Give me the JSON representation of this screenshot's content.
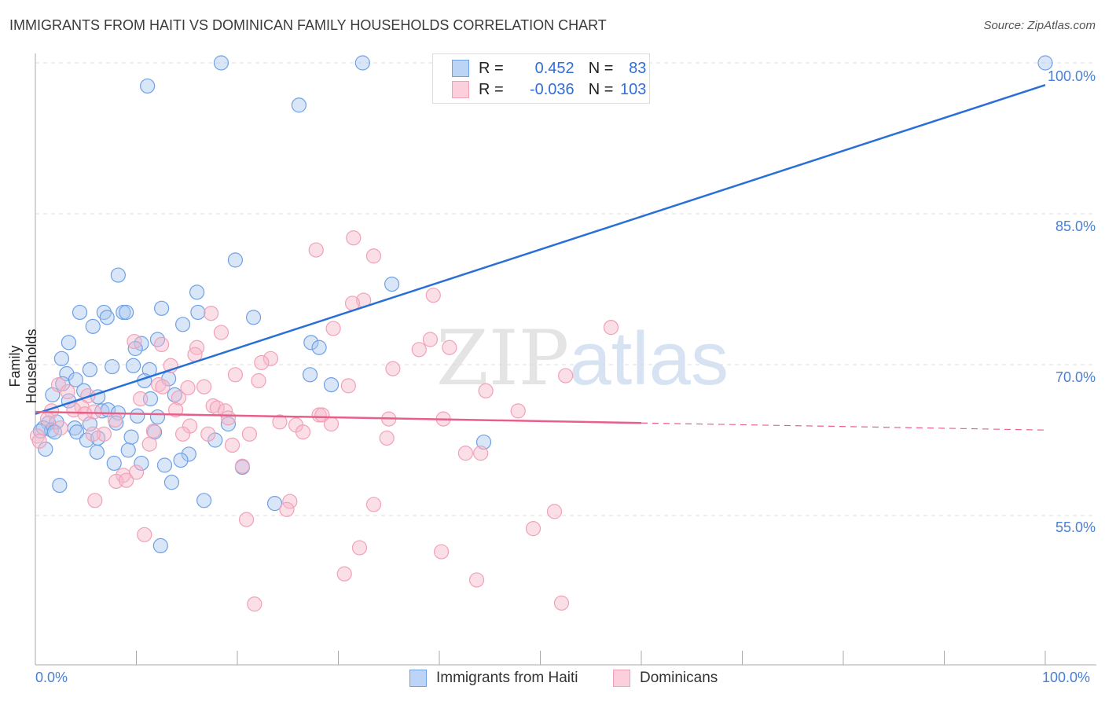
{
  "chart_data": {
    "type": "scatter",
    "title": "IMMIGRANTS FROM HAITI VS DOMINICAN FAMILY HOUSEHOLDS CORRELATION CHART",
    "source": "Source: ZipAtlas.com",
    "xlabel": "",
    "ylabel": "Family Households",
    "xlim": [
      0,
      100
    ],
    "ylim": [
      40,
      100
    ],
    "x_tick_labels": [
      "0.0%",
      "100.0%"
    ],
    "y_ticks": [
      55,
      70,
      85,
      100
    ],
    "y_tick_labels": [
      "55.0%",
      "70.0%",
      "85.0%",
      "100.0%"
    ],
    "grid": true,
    "legend_placement": "top-center",
    "watermark": {
      "zip": "ZIP",
      "atlas": "atlas"
    },
    "series": [
      {
        "name": "Immigrants from Haiti",
        "color": "#6fa0e6",
        "line_color": "#2a6fd6",
        "R_label": "R =",
        "R": "0.452",
        "N_label": "N =",
        "N": "83",
        "trend": [
          [
            0,
            65.1
          ],
          [
            100,
            97.8
          ]
        ],
        "points": [
          [
            18.4,
            100
          ],
          [
            32.4,
            100
          ],
          [
            100,
            100
          ],
          [
            11.1,
            97.7
          ],
          [
            26.1,
            95.8
          ],
          [
            19.8,
            80.4
          ],
          [
            8.2,
            78.9
          ],
          [
            35.3,
            78.0
          ],
          [
            16.0,
            77.2
          ],
          [
            4.4,
            75.2
          ],
          [
            6.8,
            75.2
          ],
          [
            8.7,
            75.2
          ],
          [
            9.0,
            75.2
          ],
          [
            12.5,
            75.6
          ],
          [
            16.1,
            75.2
          ],
          [
            7.1,
            74.7
          ],
          [
            21.6,
            74.7
          ],
          [
            5.7,
            73.8
          ],
          [
            14.6,
            74.0
          ],
          [
            3.3,
            72.2
          ],
          [
            12.1,
            72.5
          ],
          [
            10.5,
            72.1
          ],
          [
            9.9,
            71.6
          ],
          [
            27.3,
            72.2
          ],
          [
            28.1,
            71.7
          ],
          [
            2.6,
            70.6
          ],
          [
            7.6,
            69.8
          ],
          [
            5.4,
            69.5
          ],
          [
            9.7,
            69.9
          ],
          [
            11.3,
            69.5
          ],
          [
            3.1,
            69.1
          ],
          [
            27.2,
            69.0
          ],
          [
            29.3,
            68.0
          ],
          [
            4.0,
            68.5
          ],
          [
            10.8,
            68.4
          ],
          [
            13.2,
            68.6
          ],
          [
            2.7,
            68.1
          ],
          [
            4.8,
            67.4
          ],
          [
            1.7,
            67.0
          ],
          [
            6.2,
            66.8
          ],
          [
            13.8,
            67.0
          ],
          [
            3.3,
            66.4
          ],
          [
            11.4,
            66.6
          ],
          [
            6.6,
            65.4
          ],
          [
            7.2,
            65.5
          ],
          [
            8.2,
            65.2
          ],
          [
            10.1,
            64.9
          ],
          [
            12.1,
            64.8
          ],
          [
            1.3,
            64.2
          ],
          [
            2.1,
            64.3
          ],
          [
            0.8,
            63.7
          ],
          [
            1.6,
            63.5
          ],
          [
            3.9,
            63.7
          ],
          [
            5.4,
            64.1
          ],
          [
            8.0,
            64.2
          ],
          [
            19.1,
            64.1
          ],
          [
            1.9,
            63.3
          ],
          [
            4.1,
            63.3
          ],
          [
            11.8,
            63.3
          ],
          [
            9.5,
            62.8
          ],
          [
            5.1,
            62.5
          ],
          [
            6.2,
            62.7
          ],
          [
            17.8,
            62.5
          ],
          [
            44.4,
            62.3
          ],
          [
            1.0,
            61.6
          ],
          [
            6.1,
            61.3
          ],
          [
            9.2,
            61.5
          ],
          [
            15.2,
            61.1
          ],
          [
            7.8,
            60.2
          ],
          [
            10.5,
            60.2
          ],
          [
            12.8,
            60.0
          ],
          [
            14.4,
            60.5
          ],
          [
            20.5,
            59.8
          ],
          [
            2.4,
            58.0
          ],
          [
            13.5,
            58.3
          ],
          [
            16.7,
            56.5
          ],
          [
            23.7,
            56.2
          ],
          [
            12.4,
            52.0
          ],
          [
            0.5,
            63.4
          ]
        ]
      },
      {
        "name": "Dominicans",
        "color": "#f2a0b8",
        "line_color": "#e8608a",
        "R_label": "R =",
        "R": "-0.036",
        "N_label": "N =",
        "N": "103",
        "trend": [
          [
            0,
            65.3
          ],
          [
            60,
            64.2
          ]
        ],
        "trend_dashed": [
          [
            60,
            64.2
          ],
          [
            100,
            63.5
          ]
        ],
        "points": [
          [
            31.5,
            82.6
          ],
          [
            27.8,
            81.4
          ],
          [
            33.5,
            80.8
          ],
          [
            39.4,
            76.9
          ],
          [
            32.5,
            76.4
          ],
          [
            31.4,
            76.1
          ],
          [
            17.4,
            75.1
          ],
          [
            57.0,
            73.7
          ],
          [
            29.5,
            73.6
          ],
          [
            18.4,
            73.2
          ],
          [
            39.1,
            72.5
          ],
          [
            9.8,
            72.3
          ],
          [
            12.5,
            72.0
          ],
          [
            41.0,
            71.7
          ],
          [
            16.0,
            71.7
          ],
          [
            38.0,
            71.5
          ],
          [
            15.8,
            71.0
          ],
          [
            23.3,
            70.6
          ],
          [
            22.4,
            70.2
          ],
          [
            35.4,
            69.6
          ],
          [
            13.4,
            69.9
          ],
          [
            19.8,
            69.0
          ],
          [
            22.1,
            68.4
          ],
          [
            52.5,
            68.9
          ],
          [
            2.3,
            68.0
          ],
          [
            31.0,
            67.9
          ],
          [
            16.7,
            67.8
          ],
          [
            15.1,
            67.7
          ],
          [
            12.2,
            68.0
          ],
          [
            12.6,
            67.8
          ],
          [
            44.6,
            67.4
          ],
          [
            3.2,
            67.3
          ],
          [
            5.2,
            66.9
          ],
          [
            14.2,
            66.7
          ],
          [
            10.4,
            66.6
          ],
          [
            4.6,
            65.8
          ],
          [
            1.6,
            65.4
          ],
          [
            17.6,
            65.9
          ],
          [
            18.0,
            65.7
          ],
          [
            18.8,
            65.4
          ],
          [
            47.8,
            65.4
          ],
          [
            13.9,
            65.5
          ],
          [
            3.8,
            65.5
          ],
          [
            5.8,
            65.3
          ],
          [
            28.1,
            65.0
          ],
          [
            28.4,
            65.0
          ],
          [
            40.4,
            64.6
          ],
          [
            35.0,
            64.6
          ],
          [
            19.1,
            64.7
          ],
          [
            1.2,
            64.6
          ],
          [
            7.9,
            64.5
          ],
          [
            4.9,
            65.1
          ],
          [
            24.2,
            64.3
          ],
          [
            29.3,
            64.1
          ],
          [
            25.8,
            64.0
          ],
          [
            15.3,
            63.9
          ],
          [
            2.5,
            63.7
          ],
          [
            26.5,
            63.3
          ],
          [
            14.6,
            63.1
          ],
          [
            17.1,
            63.1
          ],
          [
            21.2,
            63.1
          ],
          [
            11.7,
            63.4
          ],
          [
            6.8,
            63.1
          ],
          [
            0.2,
            62.9
          ],
          [
            34.8,
            62.7
          ],
          [
            0.4,
            62.4
          ],
          [
            19.5,
            62.0
          ],
          [
            11.3,
            62.1
          ],
          [
            42.6,
            61.2
          ],
          [
            44.1,
            61.2
          ],
          [
            20.5,
            59.9
          ],
          [
            10.0,
            59.3
          ],
          [
            8.7,
            59.0
          ],
          [
            8.0,
            58.4
          ],
          [
            9.0,
            58.5
          ],
          [
            5.9,
            56.5
          ],
          [
            25.2,
            56.4
          ],
          [
            24.9,
            55.6
          ],
          [
            33.5,
            56.1
          ],
          [
            51.4,
            55.4
          ],
          [
            20.9,
            54.6
          ],
          [
            49.3,
            53.7
          ],
          [
            10.8,
            53.1
          ],
          [
            32.1,
            51.8
          ],
          [
            40.2,
            51.4
          ],
          [
            30.6,
            49.2
          ],
          [
            43.7,
            48.6
          ],
          [
            21.7,
            46.2
          ],
          [
            52.1,
            46.3
          ],
          [
            5.7,
            63.1
          ]
        ]
      }
    ]
  }
}
